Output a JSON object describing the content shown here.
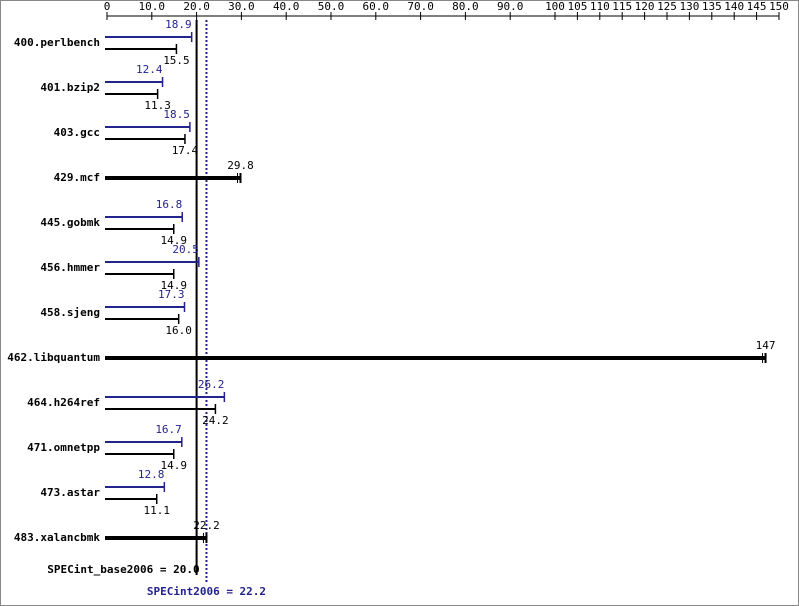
{
  "chart_data": {
    "type": "bar",
    "orientation": "horizontal",
    "categories": [
      "400.perlbench",
      "401.bzip2",
      "403.gcc",
      "429.mcf",
      "445.gobmk",
      "456.hmmer",
      "458.sjeng",
      "462.libquantum",
      "464.h264ref",
      "471.omnetpp",
      "473.astar",
      "483.xalancbmk"
    ],
    "series": [
      {
        "color": "#23238e",
        "values": [
          18.9,
          12.4,
          18.5,
          null,
          16.8,
          20.5,
          17.3,
          null,
          26.2,
          16.7,
          12.8,
          null
        ],
        "value_labels": [
          "18.9",
          "12.4",
          "18.5",
          null,
          "16.8",
          "20.5",
          "17.3",
          null,
          "26.2",
          "16.7",
          "12.8",
          null
        ]
      },
      {
        "color": "#000000",
        "values": [
          15.5,
          11.3,
          17.4,
          29.8,
          14.9,
          14.9,
          16.0,
          147,
          24.2,
          14.9,
          11.1,
          22.2
        ],
        "value_labels": [
          "15.5",
          "11.3",
          "17.4",
          "29.8",
          "14.9",
          "14.9",
          "16.0",
          "147",
          "24.2",
          "14.9",
          "11.1",
          "22.2"
        ]
      }
    ],
    "xlim": [
      0,
      150
    ],
    "xticks": [
      {
        "value": 0,
        "label": "0"
      },
      {
        "value": 10,
        "label": "10.0"
      },
      {
        "value": 20,
        "label": "20.0"
      },
      {
        "value": 30,
        "label": "30.0"
      },
      {
        "value": 40,
        "label": "40.0"
      },
      {
        "value": 50,
        "label": "50.0"
      },
      {
        "value": 60,
        "label": "60.0"
      },
      {
        "value": 70,
        "label": "70.0"
      },
      {
        "value": 80,
        "label": "80.0"
      },
      {
        "value": 90,
        "label": "90.0"
      },
      100,
      105,
      110,
      115,
      120,
      125,
      130,
      135,
      140,
      145,
      150
    ],
    "reference_lines": [
      {
        "label": "SPECint_base2006 = 20.0",
        "value": 20,
        "color": "#000000",
        "style": "solid"
      },
      {
        "label": "SPECint2006 = 22.2",
        "value": 22.2,
        "color": "#23238e",
        "style": "dotted"
      }
    ]
  }
}
